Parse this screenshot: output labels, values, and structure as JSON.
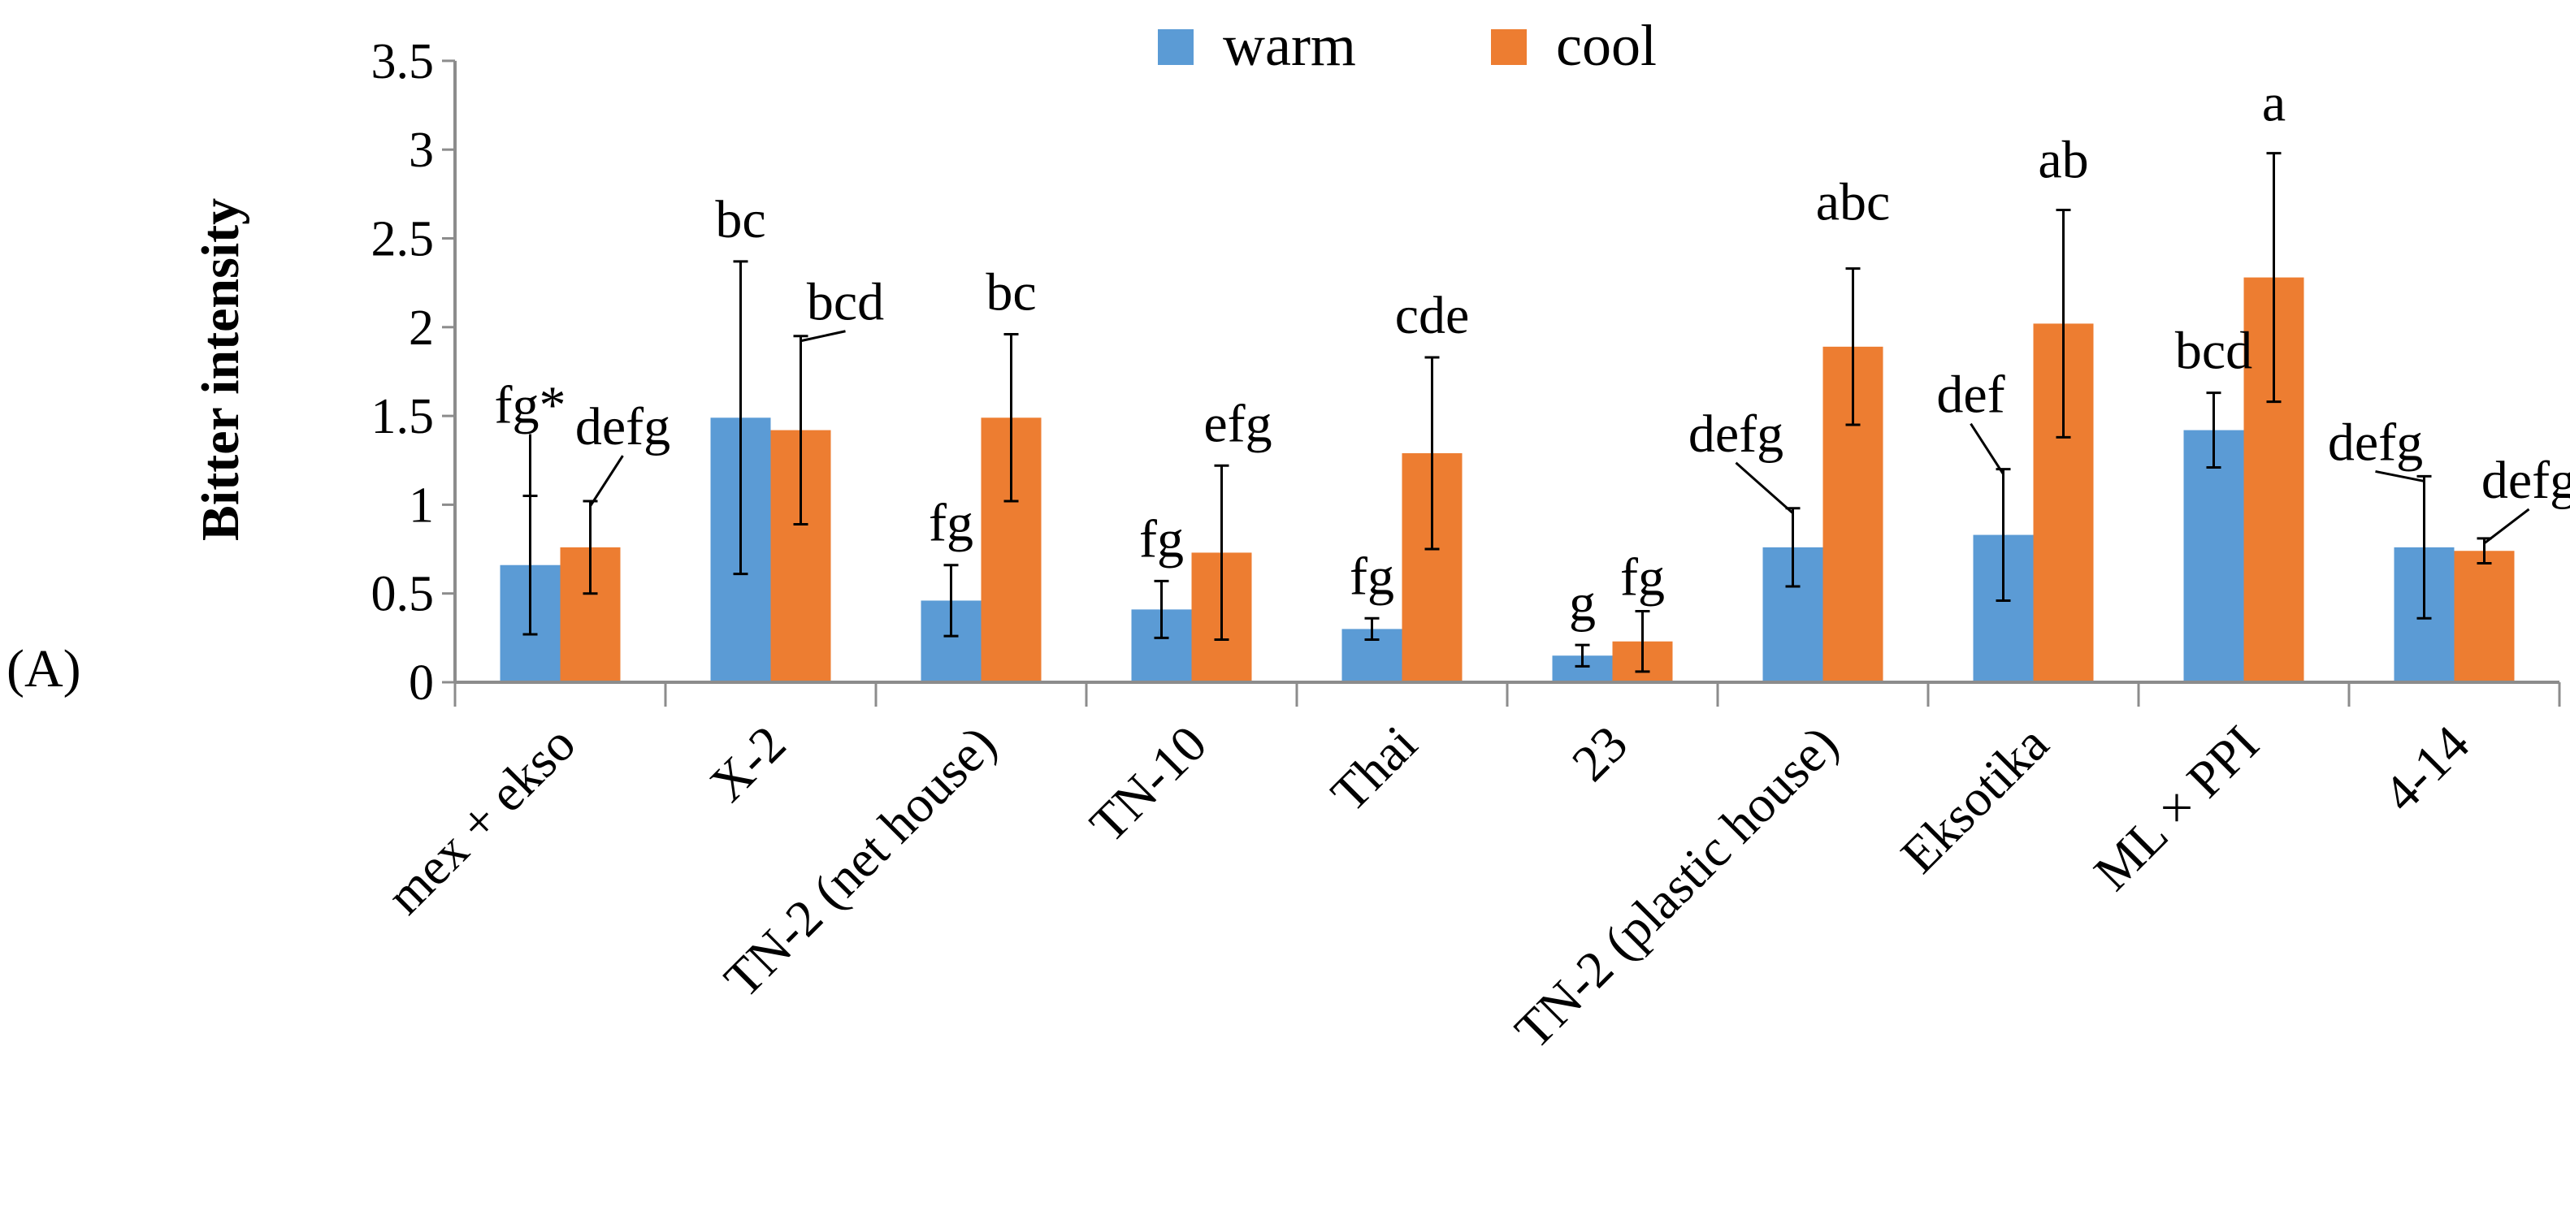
{
  "chart_data": {
    "type": "bar",
    "panel_label": "(A)",
    "ylabel": "Bitter intensity",
    "xlabel": "",
    "ylim": [
      0,
      3.5
    ],
    "yticks": [
      "0",
      "0.5",
      "1",
      "1.5",
      "2",
      "2.5",
      "3",
      "3.5"
    ],
    "categories": [
      "mex + ekso",
      "X-2",
      "TN-2 (net house)",
      "TN-10",
      "Thai",
      "23",
      "TN-2 (plastic house)",
      "Eksotika",
      "ML × PPI",
      "4-14"
    ],
    "legend": [
      "warm",
      "cool"
    ],
    "series": [
      {
        "name": "warm",
        "color": "#5b9bd5",
        "values": [
          0.66,
          1.49,
          0.46,
          0.41,
          0.3,
          0.15,
          0.76,
          0.83,
          1.42,
          0.76
        ],
        "error": [
          0.39,
          0.88,
          0.2,
          0.16,
          0.06,
          0.06,
          0.22,
          0.37,
          0.21,
          0.4
        ],
        "labels": [
          "fg*",
          "bc",
          "fg",
          "fg",
          "fg",
          "g",
          "defg",
          "def",
          "bcd",
          "defg"
        ]
      },
      {
        "name": "cool",
        "color": "#ed7d31",
        "values": [
          0.76,
          1.42,
          1.49,
          0.73,
          1.29,
          0.23,
          1.89,
          2.02,
          2.28,
          0.74
        ],
        "error": [
          0.26,
          0.53,
          0.47,
          0.49,
          0.54,
          0.17,
          0.44,
          0.64,
          0.7,
          0.07
        ],
        "labels": [
          "defg",
          "bcd",
          "bc",
          "efg",
          "cde",
          "fg",
          "abc",
          "ab",
          "a",
          "defg"
        ]
      }
    ]
  }
}
